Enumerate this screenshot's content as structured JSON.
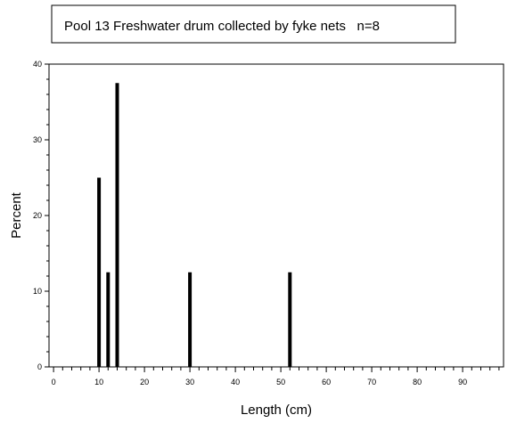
{
  "chart_data": {
    "type": "bar",
    "title": "Pool 13 Freshwater drum collected by fyke nets   n=8",
    "xlabel": "Length (cm)",
    "ylabel": "Percent",
    "xlim": [
      -1,
      99
    ],
    "ylim": [
      0,
      40
    ],
    "x_ticks": [
      0,
      10,
      20,
      30,
      40,
      50,
      60,
      70,
      80,
      90
    ],
    "y_ticks": [
      0,
      10,
      20,
      30,
      40
    ],
    "x_minor_step": 2,
    "y_minor_step": 2,
    "grid": false,
    "bar_color": "#000000",
    "bars": [
      {
        "x": 10,
        "value": 25
      },
      {
        "x": 12,
        "value": 12.5
      },
      {
        "x": 14,
        "value": 37.5
      },
      {
        "x": 30,
        "value": 12.5
      },
      {
        "x": 52,
        "value": 12.5
      }
    ]
  }
}
